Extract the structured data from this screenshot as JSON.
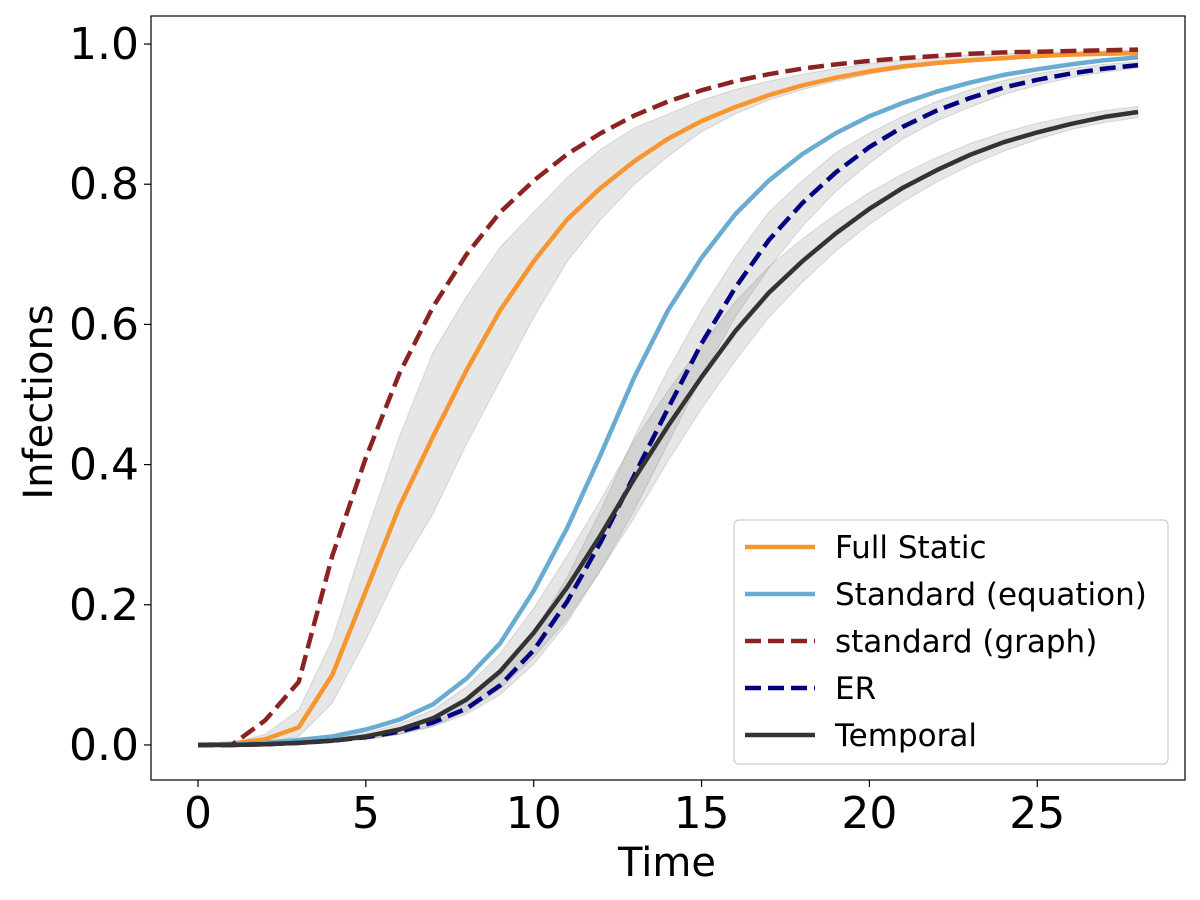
{
  "chart_data": {
    "type": "line",
    "title": "",
    "xlabel": "Time",
    "ylabel": "Infections",
    "xlim": [
      -1.4,
      29.4
    ],
    "ylim": [
      -0.05,
      1.04
    ],
    "x_ticks": [
      0,
      5,
      10,
      15,
      20,
      25
    ],
    "x_tick_labels": [
      "0",
      "5",
      "10",
      "15",
      "20",
      "25"
    ],
    "y_ticks": [
      0.0,
      0.2,
      0.4,
      0.6,
      0.8,
      1.0
    ],
    "y_tick_labels": [
      "0.0",
      "0.2",
      "0.4",
      "0.6",
      "0.8",
      "1.0"
    ],
    "grid": false,
    "legend_position": "lower right",
    "x": [
      0,
      1,
      2,
      3,
      4,
      5,
      6,
      7,
      8,
      9,
      10,
      11,
      12,
      13,
      14,
      15,
      16,
      17,
      18,
      19,
      20,
      21,
      22,
      23,
      24,
      25,
      26,
      27,
      28
    ],
    "series": [
      {
        "name": "Full Static",
        "color": "#f7962f",
        "style": "solid",
        "values": [
          0.0,
          0.002,
          0.008,
          0.025,
          0.1,
          0.22,
          0.34,
          0.44,
          0.535,
          0.62,
          0.69,
          0.75,
          0.795,
          0.833,
          0.865,
          0.89,
          0.91,
          0.927,
          0.941,
          0.952,
          0.961,
          0.968,
          0.973,
          0.977,
          0.98,
          0.983,
          0.985,
          0.986,
          0.987
        ],
        "band_low": [
          0.0,
          0.001,
          0.004,
          0.012,
          0.06,
          0.15,
          0.25,
          0.33,
          0.43,
          0.52,
          0.61,
          0.69,
          0.75,
          0.8,
          0.84,
          0.875,
          0.9,
          0.92,
          0.935,
          0.947,
          0.957,
          0.965,
          0.971,
          0.975,
          0.978,
          0.981,
          0.983,
          0.985,
          0.986
        ],
        "band_high": [
          0.0,
          0.003,
          0.015,
          0.05,
          0.15,
          0.3,
          0.44,
          0.56,
          0.64,
          0.71,
          0.76,
          0.81,
          0.85,
          0.88,
          0.9,
          0.92,
          0.935,
          0.947,
          0.957,
          0.965,
          0.972,
          0.977,
          0.981,
          0.984,
          0.986,
          0.988,
          0.989,
          0.99,
          0.991
        ]
      },
      {
        "name": "Standard (equation)",
        "color": "#6aabd2",
        "style": "solid",
        "values": [
          0.0,
          0.001,
          0.003,
          0.007,
          0.012,
          0.022,
          0.036,
          0.058,
          0.095,
          0.145,
          0.22,
          0.31,
          0.415,
          0.525,
          0.62,
          0.695,
          0.757,
          0.805,
          0.843,
          0.873,
          0.897,
          0.916,
          0.932,
          0.945,
          0.956,
          0.964,
          0.971,
          0.977,
          0.981
        ]
      },
      {
        "name": "standard (graph)",
        "color": "#8b2323",
        "style": "dashed",
        "values": [
          0.0,
          0.0,
          0.035,
          0.09,
          0.27,
          0.41,
          0.53,
          0.625,
          0.7,
          0.76,
          0.805,
          0.843,
          0.873,
          0.898,
          0.918,
          0.934,
          0.947,
          0.957,
          0.965,
          0.971,
          0.976,
          0.98,
          0.983,
          0.986,
          0.988,
          0.989,
          0.99,
          0.991,
          0.992
        ]
      },
      {
        "name": "ER",
        "color": "#000080",
        "style": "dashed",
        "values": [
          0.0,
          0.0,
          0.001,
          0.003,
          0.006,
          0.011,
          0.019,
          0.032,
          0.052,
          0.085,
          0.135,
          0.205,
          0.29,
          0.385,
          0.48,
          0.573,
          0.652,
          0.72,
          0.773,
          0.817,
          0.853,
          0.882,
          0.905,
          0.923,
          0.938,
          0.949,
          0.958,
          0.965,
          0.97
        ],
        "band_low": [
          0.0,
          0.0,
          0.0,
          0.002,
          0.004,
          0.008,
          0.015,
          0.026,
          0.044,
          0.072,
          0.115,
          0.175,
          0.25,
          0.335,
          0.43,
          0.525,
          0.61,
          0.68,
          0.74,
          0.79,
          0.83,
          0.865,
          0.89,
          0.91,
          0.928,
          0.941,
          0.952,
          0.96,
          0.966
        ],
        "band_high": [
          0.0,
          0.001,
          0.002,
          0.004,
          0.008,
          0.015,
          0.025,
          0.04,
          0.064,
          0.1,
          0.16,
          0.24,
          0.335,
          0.44,
          0.535,
          0.62,
          0.695,
          0.76,
          0.805,
          0.845,
          0.873,
          0.897,
          0.918,
          0.935,
          0.948,
          0.958,
          0.965,
          0.971,
          0.975
        ]
      },
      {
        "name": "Temporal",
        "color": "#333333",
        "style": "solid",
        "values": [
          0.0,
          0.0,
          0.001,
          0.003,
          0.006,
          0.012,
          0.022,
          0.038,
          0.065,
          0.105,
          0.16,
          0.225,
          0.3,
          0.38,
          0.455,
          0.525,
          0.59,
          0.645,
          0.69,
          0.73,
          0.765,
          0.795,
          0.82,
          0.842,
          0.86,
          0.874,
          0.886,
          0.896,
          0.903
        ],
        "band_low": [
          0.0,
          0.0,
          0.0,
          0.002,
          0.004,
          0.008,
          0.015,
          0.027,
          0.048,
          0.08,
          0.125,
          0.18,
          0.25,
          0.325,
          0.405,
          0.48,
          0.548,
          0.61,
          0.66,
          0.705,
          0.743,
          0.775,
          0.803,
          0.827,
          0.847,
          0.864,
          0.878,
          0.888,
          0.895
        ],
        "band_high": [
          0.0,
          0.001,
          0.002,
          0.005,
          0.009,
          0.017,
          0.03,
          0.05,
          0.083,
          0.13,
          0.195,
          0.27,
          0.35,
          0.435,
          0.505,
          0.57,
          0.632,
          0.682,
          0.722,
          0.757,
          0.788,
          0.815,
          0.838,
          0.858,
          0.874,
          0.887,
          0.897,
          0.905,
          0.911
        ]
      }
    ]
  }
}
